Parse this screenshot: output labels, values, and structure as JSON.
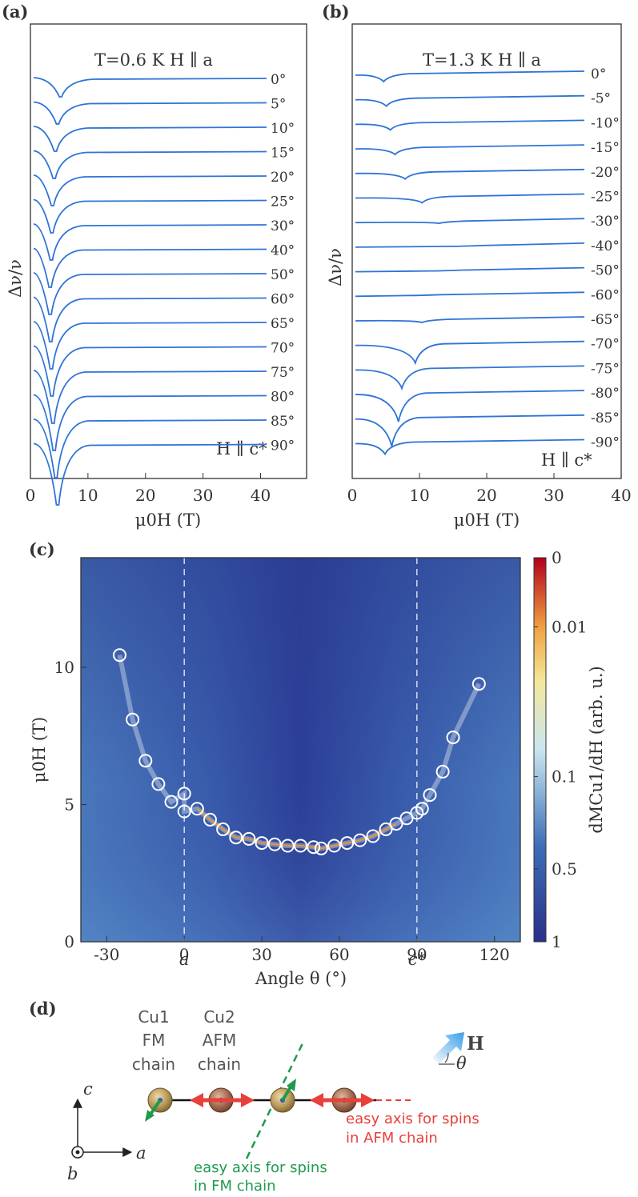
{
  "chart_data": [
    {
      "panel": "(a)",
      "type": "line",
      "annotation_top": "T=0.6 K   H ∥ a",
      "annotation_bottom": "H ∥ c*",
      "xlabel": "μ0H (T)",
      "ylabel": "Δν/ν",
      "xlim": [
        0,
        48
      ],
      "xticks": [
        "0",
        "10",
        "20",
        "30",
        "40"
      ],
      "series": [
        {
          "label": "0°",
          "dip_field": 5.3
        },
        {
          "label": "5°",
          "dip_field": 4.8
        },
        {
          "label": "10°",
          "dip_field": 4.4
        },
        {
          "label": "15°",
          "dip_field": 4.2
        },
        {
          "label": "20°",
          "dip_field": 3.9
        },
        {
          "label": "25°",
          "dip_field": 3.8
        },
        {
          "label": "30°",
          "dip_field": 3.7
        },
        {
          "label": "40°",
          "dip_field": 3.5
        },
        {
          "label": "50°",
          "dip_field": 3.5
        },
        {
          "label": "60°",
          "dip_field": 3.6
        },
        {
          "label": "65°",
          "dip_field": 3.7
        },
        {
          "label": "70°",
          "dip_field": 3.8
        },
        {
          "label": "75°",
          "dip_field": 4.0
        },
        {
          "label": "80°",
          "dip_field": 4.2
        },
        {
          "label": "85°",
          "dip_field": 4.5
        },
        {
          "label": "90°",
          "dip_field": 4.8
        }
      ]
    },
    {
      "panel": "(b)",
      "type": "line",
      "annotation_top": "T=1.3 K   H ∥ a",
      "annotation_bottom": "H ∥ c*",
      "xlabel": "μ0H (T)",
      "ylabel": "Δν/ν",
      "xlim": [
        0,
        40
      ],
      "xticks": [
        "0",
        "10",
        "20",
        "30",
        "40"
      ],
      "series": [
        {
          "label": "0°",
          "dip_field": 4.8
        },
        {
          "label": "-5°",
          "dip_field": 5.2
        },
        {
          "label": "-10°",
          "dip_field": 5.8
        },
        {
          "label": "-15°",
          "dip_field": 6.5
        },
        {
          "label": "-20°",
          "dip_field": 8.0
        },
        {
          "label": "-25°",
          "dip_field": 10.5
        },
        {
          "label": "-30°",
          "dip_field": 13.0
        },
        {
          "label": "-40°",
          "dip_field": 15.0
        },
        {
          "label": "-50°",
          "dip_field": 12.0
        },
        {
          "label": "-60°",
          "dip_field": 9.0
        },
        {
          "label": "-65°",
          "dip_field": 10.5
        },
        {
          "label": "-70°",
          "dip_field": 9.5
        },
        {
          "label": "-75°",
          "dip_field": 7.5
        },
        {
          "label": "-80°",
          "dip_field": 7.0
        },
        {
          "label": "-85°",
          "dip_field": 6.0
        },
        {
          "label": "-90°",
          "dip_field": 5.0
        }
      ]
    },
    {
      "panel": "(c)",
      "type": "heatmap",
      "xlabel": "Angle θ (°)",
      "ylabel": "μ0H (T)",
      "xlim": [
        -40,
        130
      ],
      "ylim": [
        0,
        14
      ],
      "xticks": [
        "-30",
        "0",
        "30",
        "60",
        "90",
        "120"
      ],
      "yticks": [
        "0",
        "5",
        "10"
      ],
      "axis_markers": [
        {
          "x": 0,
          "label": "a"
        },
        {
          "x": 90,
          "label": "c*"
        }
      ],
      "colorbar": {
        "label": "dMCu1/dH (arb. u.)",
        "ticks": [
          "0",
          "0.01",
          "0.1",
          "0.5",
          "1"
        ]
      },
      "points": [
        [
          -25,
          10.45
        ],
        [
          -20,
          8.1
        ],
        [
          -15,
          6.6
        ],
        [
          -10,
          5.75
        ],
        [
          -5,
          5.1
        ],
        [
          0,
          5.4
        ],
        [
          0,
          4.75
        ],
        [
          5,
          4.85
        ],
        [
          10,
          4.45
        ],
        [
          15,
          4.1
        ],
        [
          20,
          3.8
        ],
        [
          25,
          3.75
        ],
        [
          30,
          3.6
        ],
        [
          35,
          3.55
        ],
        [
          40,
          3.5
        ],
        [
          45,
          3.5
        ],
        [
          50,
          3.45
        ],
        [
          53,
          3.4
        ],
        [
          58,
          3.5
        ],
        [
          63,
          3.6
        ],
        [
          68,
          3.7
        ],
        [
          73,
          3.85
        ],
        [
          78,
          4.1
        ],
        [
          82,
          4.3
        ],
        [
          86,
          4.5
        ],
        [
          90,
          4.7
        ],
        [
          92,
          4.85
        ],
        [
          95,
          5.35
        ],
        [
          100,
          6.2
        ],
        [
          104,
          7.45
        ],
        [
          114,
          9.4
        ]
      ]
    }
  ],
  "panel_d": {
    "label": "(d)",
    "cu1_title": [
      "Cu1",
      "FM",
      "chain"
    ],
    "cu2_title": [
      "Cu2",
      "AFM",
      "chain"
    ],
    "axis_c": "c",
    "axis_a": "a",
    "axis_b": "b",
    "field_label": "H",
    "angle_label": "θ",
    "afm_easy_axis": [
      "easy axis for spins",
      "in AFM chain"
    ],
    "fm_easy_axis": [
      "easy axis for spins",
      "in FM chain"
    ]
  },
  "colors": {
    "curve": "#2f74d6",
    "heat_low": "#2a3b8f",
    "heat_mid": "#4f7fc0",
    "fit_line": "#e8952d",
    "red": "#e8403a",
    "green": "#1f9a4c"
  }
}
